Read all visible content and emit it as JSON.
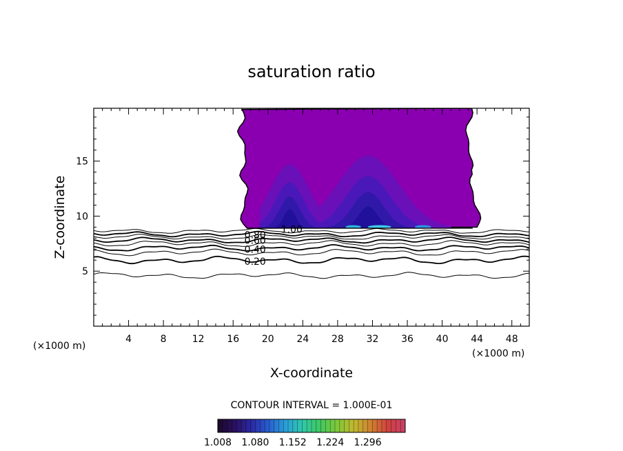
{
  "chart_data": {
    "type": "contour",
    "title": "saturation ratio",
    "xlabel": "X-coordinate",
    "ylabel": "Z-coordinate",
    "x_units": "(×1000 m)",
    "x_units_right": "(×1000 m)",
    "xlim": [
      0,
      50
    ],
    "ylim": [
      0,
      19.8
    ],
    "x_ticks": [
      4,
      8,
      12,
      16,
      20,
      24,
      28,
      32,
      36,
      40,
      44,
      48
    ],
    "y_ticks": [
      5,
      10,
      15
    ],
    "grid": false,
    "contour_interval_text": "CONTOUR INTERVAL = 1.000E-01",
    "line_levels": [
      {
        "level": 0.2,
        "label": "0.20",
        "label_x": 17.3,
        "label_y": 5.9,
        "base_z": 6.0,
        "amp": 0.18
      },
      {
        "level": 0.3,
        "label": "",
        "label_x": 0,
        "label_y": 0,
        "base_z": 6.7,
        "amp": 0.16
      },
      {
        "level": 0.4,
        "label": "0.40",
        "label_x": 17.3,
        "label_y": 7.0,
        "base_z": 7.1,
        "amp": 0.15
      },
      {
        "level": 0.5,
        "label": "",
        "label_x": 0,
        "label_y": 0,
        "base_z": 7.5,
        "amp": 0.15
      },
      {
        "level": 0.6,
        "label": "0.60",
        "label_x": 17.3,
        "label_y": 7.8,
        "base_z": 7.8,
        "amp": 0.14
      },
      {
        "level": 0.7,
        "label": "",
        "label_x": 0,
        "label_y": 0,
        "base_z": 8.1,
        "amp": 0.13
      },
      {
        "level": 0.8,
        "label": "0.80",
        "label_x": 17.3,
        "label_y": 8.3,
        "base_z": 8.35,
        "amp": 0.13
      },
      {
        "level": 0.9,
        "label": "",
        "label_x": 0,
        "label_y": 0,
        "base_z": 8.65,
        "amp": 0.12
      },
      {
        "level": 1.0,
        "label": "1.00",
        "label_x": 21.5,
        "label_y": 8.8,
        "base_z": 8.9,
        "amp": 0.05
      }
    ],
    "lower_line": {
      "level": 0.1,
      "base_z": 4.6,
      "amp": 0.15
    },
    "filled_region": {
      "x_left": 17.3,
      "x_right": 43.5,
      "z_bottom": 8.9,
      "z_top": 19.8,
      "base_value": 1.008
    },
    "colorbar": {
      "min": 1.008,
      "max": 1.368,
      "tick_labels": [
        "1.008",
        "1.080",
        "1.152",
        "1.224",
        "1.296"
      ],
      "colors": [
        "#1a0a2a",
        "#2a1060",
        "#2a2aa8",
        "#2860d0",
        "#2aa0d8",
        "#30c8a8",
        "#40c860",
        "#80c838",
        "#c0b830",
        "#d08030",
        "#d04040",
        "#c84068"
      ]
    }
  }
}
